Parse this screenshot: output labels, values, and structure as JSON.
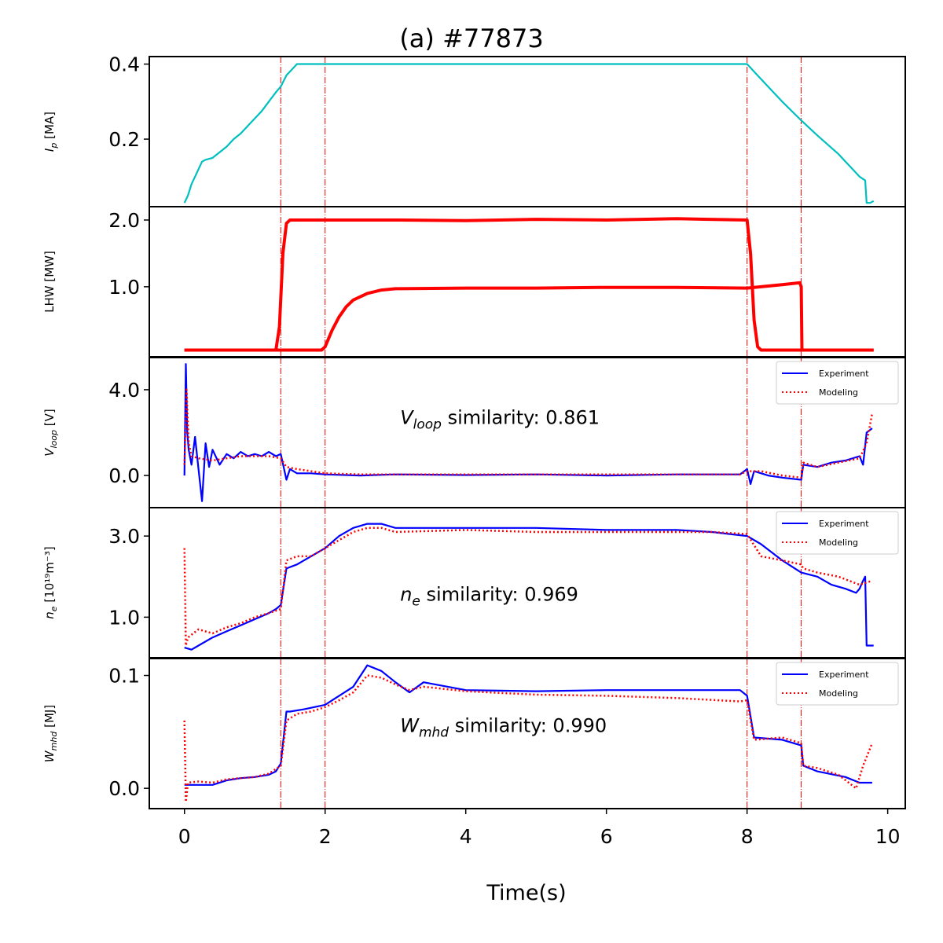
{
  "chart_data": {
    "type": "line",
    "title": "(a) #77873",
    "xlabel": "Time(s)",
    "xlim": [
      -0.5,
      10.25
    ],
    "xticks": [
      0,
      2,
      4,
      6,
      8,
      10
    ],
    "xtick_labels": [
      "0",
      "2",
      "4",
      "6",
      "8",
      "10"
    ],
    "event_lines_x": [
      1.37,
      2.0,
      8.0,
      8.77
    ],
    "colors": {
      "ip": "#00bfbf",
      "lhw": "#ff0000",
      "experiment": "#0000ff",
      "modeling": "#ff0000",
      "event_line": "#ff0000"
    },
    "legend": {
      "experiment": "Experiment",
      "modeling": "Modeling",
      "position": "top-right"
    },
    "panels": [
      {
        "id": "ip",
        "ylabel": "I_p [MA]",
        "ylabel_main": "I",
        "ylabel_sub": "p",
        "ylabel_tail": " [MA]",
        "ylim": [
          0.02,
          0.42
        ],
        "yticks": [
          0.2,
          0.4
        ],
        "ytick_labels": [
          "0.2",
          "0.4"
        ],
        "series": [
          {
            "name": "Ip",
            "style": "solid",
            "color": "#00bfbf",
            "x": [
              0.0,
              0.05,
              0.1,
              0.15,
              0.2,
              0.25,
              0.3,
              0.4,
              0.5,
              0.6,
              0.7,
              0.8,
              0.9,
              1.0,
              1.1,
              1.2,
              1.3,
              1.37,
              1.45,
              1.55,
              1.6,
              1.8,
              2.0,
              3.0,
              4.0,
              5.0,
              6.0,
              7.0,
              7.9,
              8.0,
              8.2,
              8.5,
              8.77,
              9.0,
              9.3,
              9.6,
              9.68,
              9.7,
              9.75,
              9.8
            ],
            "y": [
              0.03,
              0.05,
              0.08,
              0.1,
              0.12,
              0.14,
              0.145,
              0.15,
              0.165,
              0.18,
              0.2,
              0.215,
              0.235,
              0.255,
              0.275,
              0.3,
              0.325,
              0.34,
              0.37,
              0.39,
              0.4,
              0.4,
              0.4,
              0.4,
              0.4,
              0.4,
              0.4,
              0.4,
              0.4,
              0.4,
              0.36,
              0.3,
              0.25,
              0.21,
              0.16,
              0.1,
              0.09,
              0.03,
              0.03,
              0.035
            ]
          }
        ]
      },
      {
        "id": "lhw",
        "ylabel": "LHW [MW]",
        "ylim": [
          -0.05,
          2.2
        ],
        "yticks": [
          1.0,
          2.0
        ],
        "ytick_labels": [
          "1.0",
          "2.0"
        ],
        "series": [
          {
            "name": "LHW-1",
            "style": "solid",
            "color": "#ff0000",
            "x": [
              0.0,
              1.3,
              1.35,
              1.4,
              1.45,
              1.5,
              2.0,
              3.0,
              4.0,
              5.0,
              6.0,
              7.0,
              8.0,
              8.05,
              8.1,
              8.15,
              8.2,
              9.0,
              9.8
            ],
            "y": [
              0.05,
              0.05,
              0.4,
              1.5,
              1.95,
              2.0,
              2.0,
              2.0,
              1.99,
              2.01,
              2.0,
              2.02,
              2.0,
              1.5,
              0.5,
              0.1,
              0.05,
              0.05,
              0.05
            ]
          },
          {
            "name": "LHW-2",
            "style": "solid",
            "color": "#ff0000",
            "x": [
              0.0,
              1.95,
              2.0,
              2.1,
              2.2,
              2.3,
              2.4,
              2.6,
              2.8,
              3.0,
              4.0,
              5.0,
              6.0,
              7.0,
              8.0,
              8.5,
              8.75,
              8.77,
              8.78,
              9.8
            ],
            "y": [
              0.05,
              0.05,
              0.1,
              0.35,
              0.55,
              0.7,
              0.8,
              0.9,
              0.95,
              0.97,
              0.98,
              0.98,
              0.99,
              0.99,
              0.98,
              1.03,
              1.06,
              1.0,
              0.05,
              0.05
            ]
          }
        ]
      },
      {
        "id": "vloop",
        "ylabel": "V_loop [V]",
        "ylabel_main": "V",
        "ylabel_sub": "loop",
        "ylabel_tail": " [V]",
        "ylim": [
          -1.5,
          5.5
        ],
        "yticks": [
          0.0,
          4.0
        ],
        "ytick_labels": [
          "0.0",
          "4.0"
        ],
        "annotation": {
          "prefix": "V",
          "sub": "loop",
          "text": " similarity: 0.861",
          "x": 3.0,
          "y": 2.4
        },
        "series": [
          {
            "name": "Experiment",
            "style": "solid",
            "color": "#0000ff",
            "x": [
              0.0,
              0.02,
              0.04,
              0.06,
              0.1,
              0.15,
              0.2,
              0.25,
              0.3,
              0.35,
              0.4,
              0.5,
              0.6,
              0.7,
              0.8,
              0.9,
              1.0,
              1.1,
              1.2,
              1.3,
              1.37,
              1.45,
              1.5,
              1.6,
              1.8,
              2.0,
              2.5,
              3.0,
              4.0,
              5.0,
              6.0,
              7.0,
              7.9,
              8.0,
              8.05,
              8.1,
              8.3,
              8.5,
              8.77,
              8.8,
              9.0,
              9.2,
              9.4,
              9.6,
              9.65,
              9.7,
              9.78
            ],
            "y": [
              0.0,
              5.2,
              2.0,
              1.2,
              0.5,
              1.8,
              0.3,
              -1.2,
              1.5,
              0.4,
              1.2,
              0.5,
              1.0,
              0.8,
              1.1,
              0.9,
              1.0,
              0.9,
              1.1,
              0.9,
              1.0,
              -0.2,
              0.3,
              0.1,
              0.1,
              0.05,
              0.0,
              0.05,
              0.02,
              0.05,
              0.0,
              0.05,
              0.05,
              0.3,
              -0.4,
              0.2,
              0.0,
              -0.1,
              -0.2,
              0.5,
              0.4,
              0.6,
              0.7,
              0.9,
              0.5,
              2.0,
              2.2
            ]
          },
          {
            "name": "Modeling",
            "style": "dotted",
            "color": "#ff0000",
            "x": [
              0.0,
              0.03,
              0.06,
              0.1,
              0.2,
              0.4,
              0.6,
              0.8,
              1.0,
              1.2,
              1.37,
              1.45,
              1.6,
              1.8,
              2.0,
              2.5,
              3.0,
              4.0,
              5.0,
              6.0,
              7.0,
              7.9,
              8.0,
              8.2,
              8.5,
              8.77,
              8.8,
              9.0,
              9.3,
              9.6,
              9.7,
              9.78
            ],
            "y": [
              0.5,
              4.0,
              1.5,
              0.9,
              0.8,
              0.7,
              0.8,
              0.9,
              0.9,
              0.9,
              0.8,
              0.4,
              0.3,
              0.2,
              0.1,
              0.05,
              0.05,
              0.05,
              0.05,
              0.05,
              0.05,
              0.05,
              0.2,
              0.2,
              0.0,
              -0.1,
              0.6,
              0.4,
              0.6,
              0.8,
              1.5,
              2.9
            ]
          }
        ]
      },
      {
        "id": "ne",
        "ylabel": "n_e [10^19 m^-3]",
        "ylabel_main": "n",
        "ylabel_sub": "e",
        "ylabel_tail": " [10¹⁹m⁻³]",
        "ylim": [
          0.0,
          3.7
        ],
        "yticks": [
          1.0,
          3.0
        ],
        "ytick_labels": [
          "1.0",
          "3.0"
        ],
        "annotation": {
          "prefix": "n",
          "sub": "e",
          "text": " similarity: 0.969",
          "x": 3.0,
          "y": 1.4
        },
        "series": [
          {
            "name": "Experiment",
            "style": "solid",
            "color": "#0000ff",
            "x": [
              0.0,
              0.1,
              0.2,
              0.4,
              0.6,
              0.8,
              1.0,
              1.2,
              1.3,
              1.37,
              1.45,
              1.6,
              1.8,
              2.0,
              2.2,
              2.4,
              2.6,
              2.8,
              3.0,
              4.0,
              5.0,
              6.0,
              7.0,
              7.5,
              8.0,
              8.2,
              8.5,
              8.77,
              9.0,
              9.2,
              9.4,
              9.55,
              9.6,
              9.65,
              9.68,
              9.7,
              9.75,
              9.8
            ],
            "y": [
              0.25,
              0.2,
              0.3,
              0.5,
              0.65,
              0.8,
              0.95,
              1.1,
              1.2,
              1.3,
              2.2,
              2.3,
              2.5,
              2.7,
              3.0,
              3.2,
              3.3,
              3.3,
              3.2,
              3.2,
              3.2,
              3.15,
              3.15,
              3.1,
              3.0,
              2.8,
              2.4,
              2.1,
              2.0,
              1.8,
              1.7,
              1.6,
              1.7,
              1.9,
              2.0,
              0.3,
              0.3,
              0.3
            ]
          },
          {
            "name": "Modeling",
            "style": "dotted",
            "color": "#ff0000",
            "x": [
              0.0,
              0.02,
              0.05,
              0.2,
              0.4,
              0.6,
              0.8,
              1.0,
              1.2,
              1.37,
              1.45,
              1.6,
              1.8,
              2.0,
              2.2,
              2.4,
              2.6,
              2.8,
              3.0,
              4.0,
              5.0,
              6.0,
              7.0,
              7.5,
              8.0,
              8.2,
              8.5,
              8.77,
              8.8,
              9.0,
              9.3,
              9.6,
              9.78
            ],
            "y": [
              2.7,
              0.3,
              0.5,
              0.7,
              0.6,
              0.75,
              0.85,
              1.0,
              1.1,
              1.2,
              2.4,
              2.5,
              2.5,
              2.7,
              2.9,
              3.1,
              3.2,
              3.2,
              3.1,
              3.15,
              3.1,
              3.1,
              3.1,
              3.1,
              3.05,
              2.5,
              2.4,
              2.3,
              2.2,
              2.1,
              2.0,
              1.8,
              1.9
            ]
          }
        ]
      },
      {
        "id": "wmhd",
        "ylabel": "W_mhd [MJ]",
        "ylabel_main": "W",
        "ylabel_sub": "mhd",
        "ylabel_tail": " [MJ]",
        "ylim": [
          -0.018,
          0.115
        ],
        "yticks": [
          0.0,
          0.1
        ],
        "ytick_labels": [
          "0.0",
          "0.1"
        ],
        "annotation": {
          "prefix": "W",
          "sub": "mhd",
          "text": " similarity: 0.990",
          "x": 3.0,
          "y": 0.05
        },
        "series": [
          {
            "name": "Experiment",
            "style": "solid",
            "color": "#0000ff",
            "x": [
              0.0,
              0.4,
              0.6,
              0.8,
              1.0,
              1.2,
              1.3,
              1.37,
              1.45,
              1.5,
              1.7,
              2.0,
              2.2,
              2.4,
              2.6,
              2.8,
              3.0,
              3.2,
              3.4,
              4.0,
              5.0,
              6.0,
              7.0,
              7.9,
              8.0,
              8.1,
              8.5,
              8.77,
              8.8,
              9.0,
              9.4,
              9.6,
              9.78
            ],
            "y": [
              0.003,
              0.003,
              0.007,
              0.009,
              0.01,
              0.012,
              0.015,
              0.022,
              0.068,
              0.068,
              0.07,
              0.074,
              0.082,
              0.09,
              0.109,
              0.104,
              0.094,
              0.085,
              0.094,
              0.087,
              0.086,
              0.087,
              0.087,
              0.087,
              0.082,
              0.045,
              0.043,
              0.038,
              0.02,
              0.015,
              0.01,
              0.005,
              0.005
            ]
          },
          {
            "name": "Modeling",
            "style": "dotted",
            "color": "#ff0000",
            "x": [
              0.0,
              0.02,
              0.05,
              0.2,
              0.4,
              0.6,
              0.8,
              1.0,
              1.2,
              1.37,
              1.45,
              1.6,
              1.8,
              2.0,
              2.2,
              2.4,
              2.6,
              2.8,
              3.0,
              3.2,
              3.4,
              4.0,
              5.0,
              6.0,
              7.0,
              7.9,
              8.0,
              8.1,
              8.5,
              8.77,
              8.8,
              9.0,
              9.3,
              9.55,
              9.65,
              9.78
            ],
            "y": [
              0.06,
              -0.012,
              0.005,
              0.006,
              0.005,
              0.008,
              0.009,
              0.01,
              0.013,
              0.02,
              0.06,
              0.066,
              0.068,
              0.072,
              0.078,
              0.085,
              0.1,
              0.098,
              0.092,
              0.087,
              0.09,
              0.086,
              0.083,
              0.082,
              0.08,
              0.077,
              0.078,
              0.043,
              0.045,
              0.04,
              0.02,
              0.018,
              0.012,
              0.0,
              0.02,
              0.04
            ]
          }
        ]
      }
    ]
  }
}
